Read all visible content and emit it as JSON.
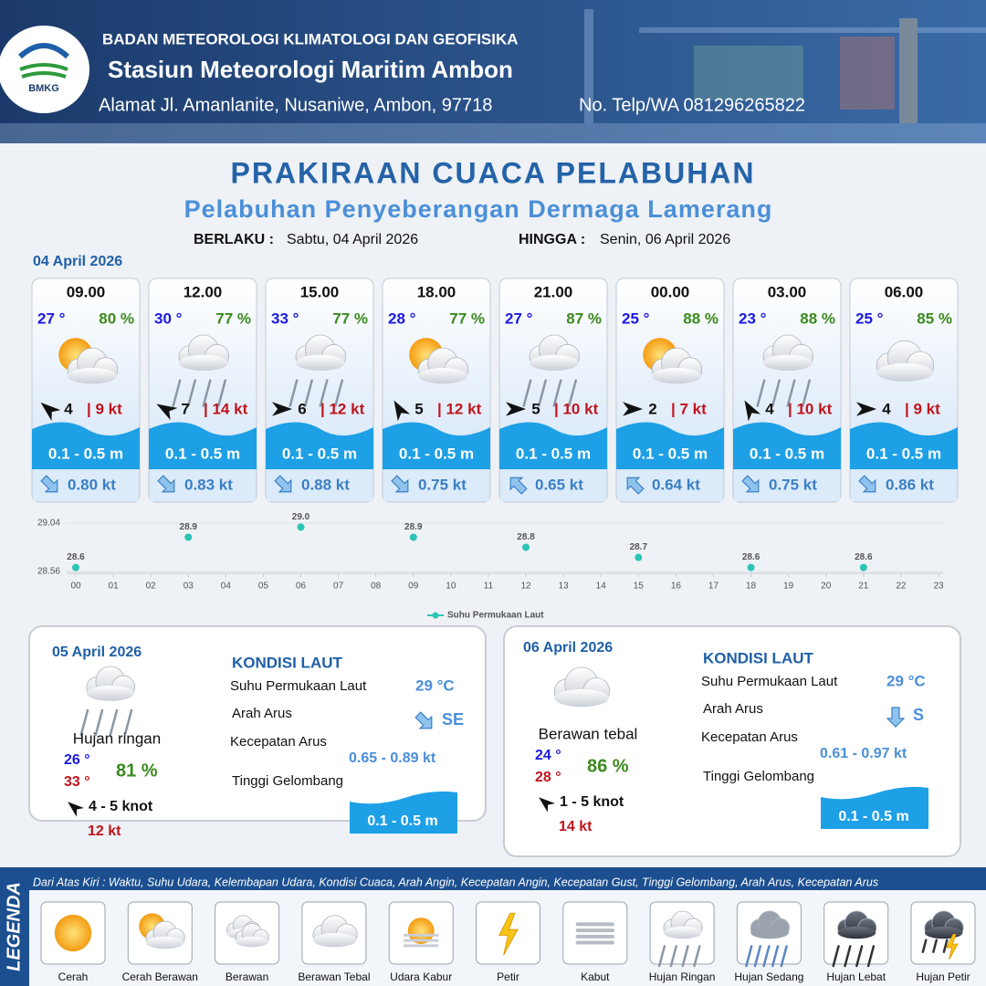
{
  "header": {
    "logo": "BMKG",
    "agency": "BADAN METEOROLOGI KLIMATOLOGI DAN GEOFISIKA",
    "station": "Stasiun Meteorologi Maritim Ambon",
    "address": "Alamat Jl. Amanlanite, Nusaniwe, Ambon, 97718",
    "phone": "No. Telp/WA  081296265822"
  },
  "title": "PRAKIRAAN CUACA PELABUHAN",
  "subtitle": "Pelabuhan Penyeberangan Dermaga Lamerang",
  "validity": {
    "from_label": "BERLAKU :",
    "from": "Sabtu, 04 April 2026",
    "to_label": "HINGGA :",
    "to": "Senin, 06 April 2026"
  },
  "day1": {
    "date": "04 April 2026",
    "slots": [
      {
        "time": "09.00",
        "temp": "27 °",
        "humidity": "80 %",
        "wind": "4",
        "gust": "| 9 kt",
        "wave": "0.1 - 0.5 m",
        "current": "0.80 kt"
      },
      {
        "time": "12.00",
        "temp": "30 °",
        "humidity": "77 %",
        "wind": "7",
        "gust": "| 14 kt",
        "wave": "0.1 - 0.5 m",
        "current": "0.83 kt"
      },
      {
        "time": "15.00",
        "temp": "33 °",
        "humidity": "77 %",
        "wind": "6",
        "gust": "| 12 kt",
        "wave": "0.1 - 0.5 m",
        "current": "0.88 kt"
      },
      {
        "time": "18.00",
        "temp": "28 °",
        "humidity": "77 %",
        "wind": "5",
        "gust": "| 12 kt",
        "wave": "0.1 - 0.5 m",
        "current": "0.75 kt"
      },
      {
        "time": "21.00",
        "temp": "27 °",
        "humidity": "87 %",
        "wind": "5",
        "gust": "| 10 kt",
        "wave": "0.1 - 0.5 m",
        "current": "0.65 kt"
      },
      {
        "time": "00.00",
        "temp": "25 °",
        "humidity": "88 %",
        "wind": "2",
        "gust": "| 7 kt",
        "wave": "0.1 - 0.5 m",
        "current": "0.64 kt"
      },
      {
        "time": "03.00",
        "temp": "23 °",
        "humidity": "88 %",
        "wind": "4",
        "gust": "| 10 kt",
        "wave": "0.1 - 0.5 m",
        "current": "0.75 kt"
      },
      {
        "time": "06.00",
        "temp": "25 °",
        "humidity": "85 %",
        "wind": "4",
        "gust": "| 9 kt",
        "wave": "0.1 - 0.5 m",
        "current": "0.86 kt"
      }
    ]
  },
  "chart_data": {
    "type": "scatter",
    "series_name": "Suhu Permukaan Laut",
    "color": "#2cc4b4",
    "x": [
      0,
      3,
      6,
      9,
      12,
      15,
      18,
      21
    ],
    "values": [
      28.6,
      28.9,
      29.0,
      28.9,
      28.8,
      28.7,
      28.6,
      28.6
    ],
    "value_labels": [
      "28.6",
      "28.9",
      "29.0",
      "28.9",
      "28.8",
      "28.7",
      "28.6",
      "28.6"
    ],
    "xlim": [
      0,
      23
    ],
    "xticks": [
      {
        "value": 0,
        "label": "00"
      },
      {
        "value": 1,
        "label": "01"
      },
      {
        "value": 2,
        "label": "02"
      },
      {
        "value": 3,
        "label": "03"
      },
      {
        "value": 4,
        "label": "04"
      },
      {
        "value": 5,
        "label": "05"
      },
      {
        "value": 6,
        "label": "06"
      },
      {
        "value": 7,
        "label": "07"
      },
      {
        "value": 8,
        "label": "08"
      },
      {
        "value": 9,
        "label": "09"
      },
      10,
      11,
      12,
      13,
      14,
      15,
      16,
      17,
      18,
      19,
      20,
      21,
      22,
      23
    ],
    "ylim": [
      28.56,
      29.04
    ],
    "yticks": [
      28.56,
      29.04
    ],
    "grid": true
  },
  "panels": [
    {
      "date": "05 April 2026",
      "condition": "Hujan ringan",
      "temp_min": "26 °",
      "temp_max": "33 °",
      "humidity": "81 %",
      "wind": "4  - 5 knot",
      "gust": "12 kt",
      "sea": {
        "heading": "KONDISI LAUT",
        "sst_label": "Suhu Permukaan Laut",
        "sst": "29 °C",
        "dir_label": "Arah Arus",
        "dir": "SE",
        "speed_label": "Kecepatan Arus",
        "speed": "0.65 - 0.89 kt",
        "wave_label": "Tinggi Gelombang",
        "wave": "0.1 - 0.5 m"
      }
    },
    {
      "date": "06 April 2026",
      "condition": "Berawan tebal",
      "temp_min": "24 °",
      "temp_max": "28 °",
      "humidity": "86 %",
      "wind": "1 - 5 knot",
      "gust": "14 kt",
      "sea": {
        "heading": "KONDISI LAUT",
        "sst_label": "Suhu Permukaan Laut",
        "sst": "29 °C",
        "dir_label": "Arah Arus",
        "dir": "S",
        "speed_label": "Kecepatan Arus",
        "speed": "0.61 - 0.97 kt",
        "wave_label": "Tinggi Gelombang",
        "wave": "0.1 - 0.5 m"
      }
    }
  ],
  "legend": {
    "title": "LEGENDA",
    "note": "Dari Atas Kiri : Waktu, Suhu Udara, Kelembapan Udara, Kondisi Cuaca, Arah Angin, Kecepatan Angin, Kecepatan Gust, Tinggi Gelombang, Arah Arus, Kecepatan Arus",
    "items": [
      "Cerah",
      "Cerah Berawan",
      "Berawan",
      "Berawan Tebal",
      "Udara Kabur",
      "Petir",
      "Kabut",
      "Hujan Ringan",
      "Hujan Sedang",
      "Hujan Lebat",
      "Hujan Petir"
    ]
  }
}
